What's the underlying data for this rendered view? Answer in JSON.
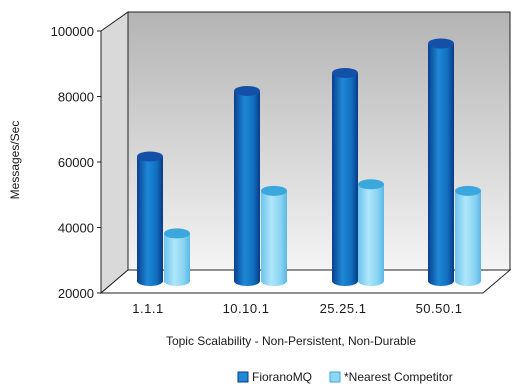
{
  "chart_data": {
    "type": "bar",
    "title": "",
    "xlabel": "Topic Scalability - Non-Persistent, Non-Durable",
    "ylabel": "Messages/Sec",
    "ylim": [
      20000,
      100000
    ],
    "yticks": [
      "20000",
      "40000",
      "60000",
      "80000",
      "100000"
    ],
    "categories": [
      "1.1.1",
      "10.10.1",
      "25.25.1",
      "50.50.1"
    ],
    "series": [
      {
        "name": "FioranoMQ",
        "values": [
          62000,
          82000,
          87500,
          96500
        ]
      },
      {
        "name": "*Nearest Competitor",
        "values": [
          38500,
          51500,
          53500,
          51500
        ]
      }
    ],
    "legend_position": "bottom-right",
    "grid": false
  },
  "colors": {
    "series_1": "#1e88d6",
    "series_1_top": "#1550a8",
    "series_2": "#8fd6f2",
    "series_2_top": "#3aa7dd",
    "wall_top": "#b4b4b4",
    "wall_bottom": "#f4f4f4"
  }
}
